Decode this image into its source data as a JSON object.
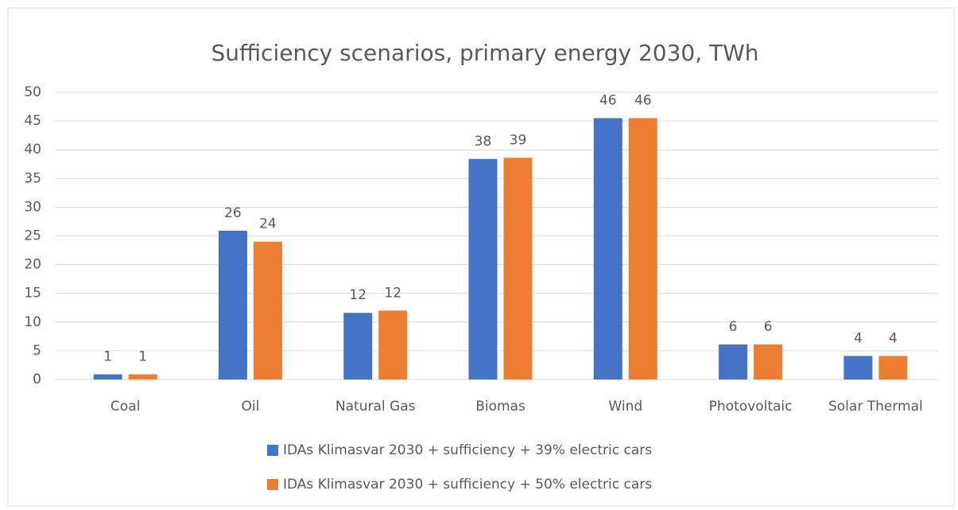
{
  "chart_data": {
    "type": "bar",
    "title": "Sufficiency scenarios, primary energy 2030, TWh",
    "categories": [
      "Coal",
      "Oil",
      "Natural Gas",
      "Biomas",
      "Wind",
      "Photovoltaic",
      "Solar Thermal"
    ],
    "series": [
      {
        "name": "IDAs Klimasvar 2030 + sufficiency + 39% electric cars",
        "color": "#4472c4",
        "values": [
          0.9,
          25.9,
          11.6,
          38.4,
          45.5,
          6.1,
          4.1
        ],
        "value_labels": [
          "1",
          "26",
          "12",
          "38",
          "46",
          "6",
          "4"
        ]
      },
      {
        "name": "IDAs Klimasvar 2030 + sufficiency + 50% electric cars",
        "color": "#ed7d31",
        "values": [
          0.9,
          24.0,
          12.0,
          38.6,
          45.5,
          6.1,
          4.1
        ],
        "value_labels": [
          "1",
          "24",
          "12",
          "39",
          "46",
          "6",
          "4"
        ]
      }
    ],
    "ylim": [
      0,
      50
    ],
    "yticks": [
      0,
      5,
      10,
      15,
      20,
      25,
      30,
      35,
      40,
      45,
      50
    ],
    "grid": true,
    "legend": "bottom"
  }
}
